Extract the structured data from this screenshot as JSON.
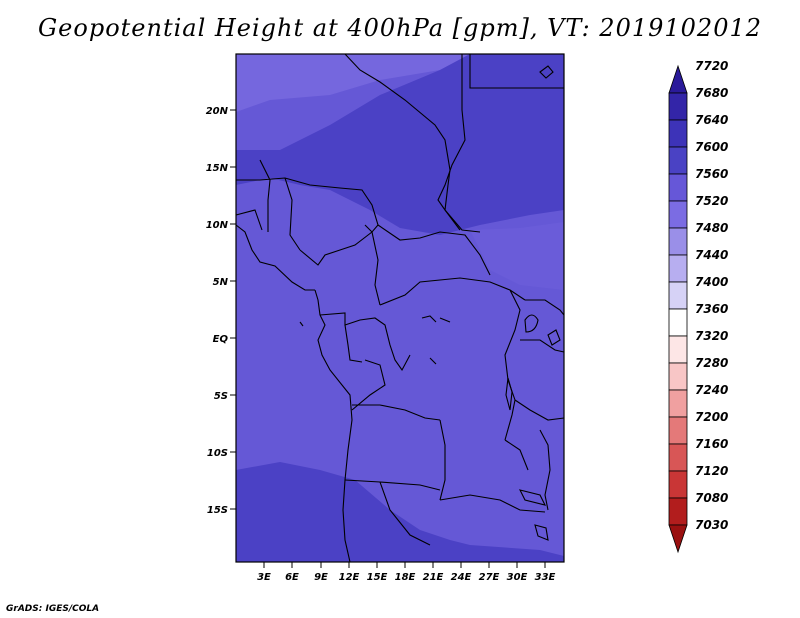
{
  "title": "Geopotential Height at 400hPa [gpm], VT: 2019102012",
  "credit": "GrADS: IGES/COLA",
  "map": {
    "lat_labels": [
      "20N",
      "15N",
      "10N",
      "5N",
      "EQ",
      "5S",
      "10S",
      "15S"
    ],
    "lon_labels": [
      "3E",
      "6E",
      "9E",
      "12E",
      "15E",
      "18E",
      "21E",
      "24E",
      "27E",
      "30E",
      "33E"
    ]
  },
  "colorbar": {
    "levels": [
      "7720",
      "7680",
      "7640",
      "7600",
      "7560",
      "7520",
      "7480",
      "7440",
      "7400",
      "7360",
      "7320",
      "7280",
      "7240",
      "7200",
      "7160",
      "7120",
      "7080",
      "7030"
    ],
    "colors": [
      "#2a1a9a",
      "#3325a8",
      "#3d33b8",
      "#4a42c4",
      "#6657d8",
      "#7b6ce3",
      "#9a8fe8",
      "#b7aef0",
      "#d6d2f6",
      "#ffffff",
      "#fde6e6",
      "#f8c6c6",
      "#f0a0a0",
      "#e47979",
      "#d85656",
      "#c93636",
      "#b21d1d",
      "#9a1010"
    ]
  }
}
